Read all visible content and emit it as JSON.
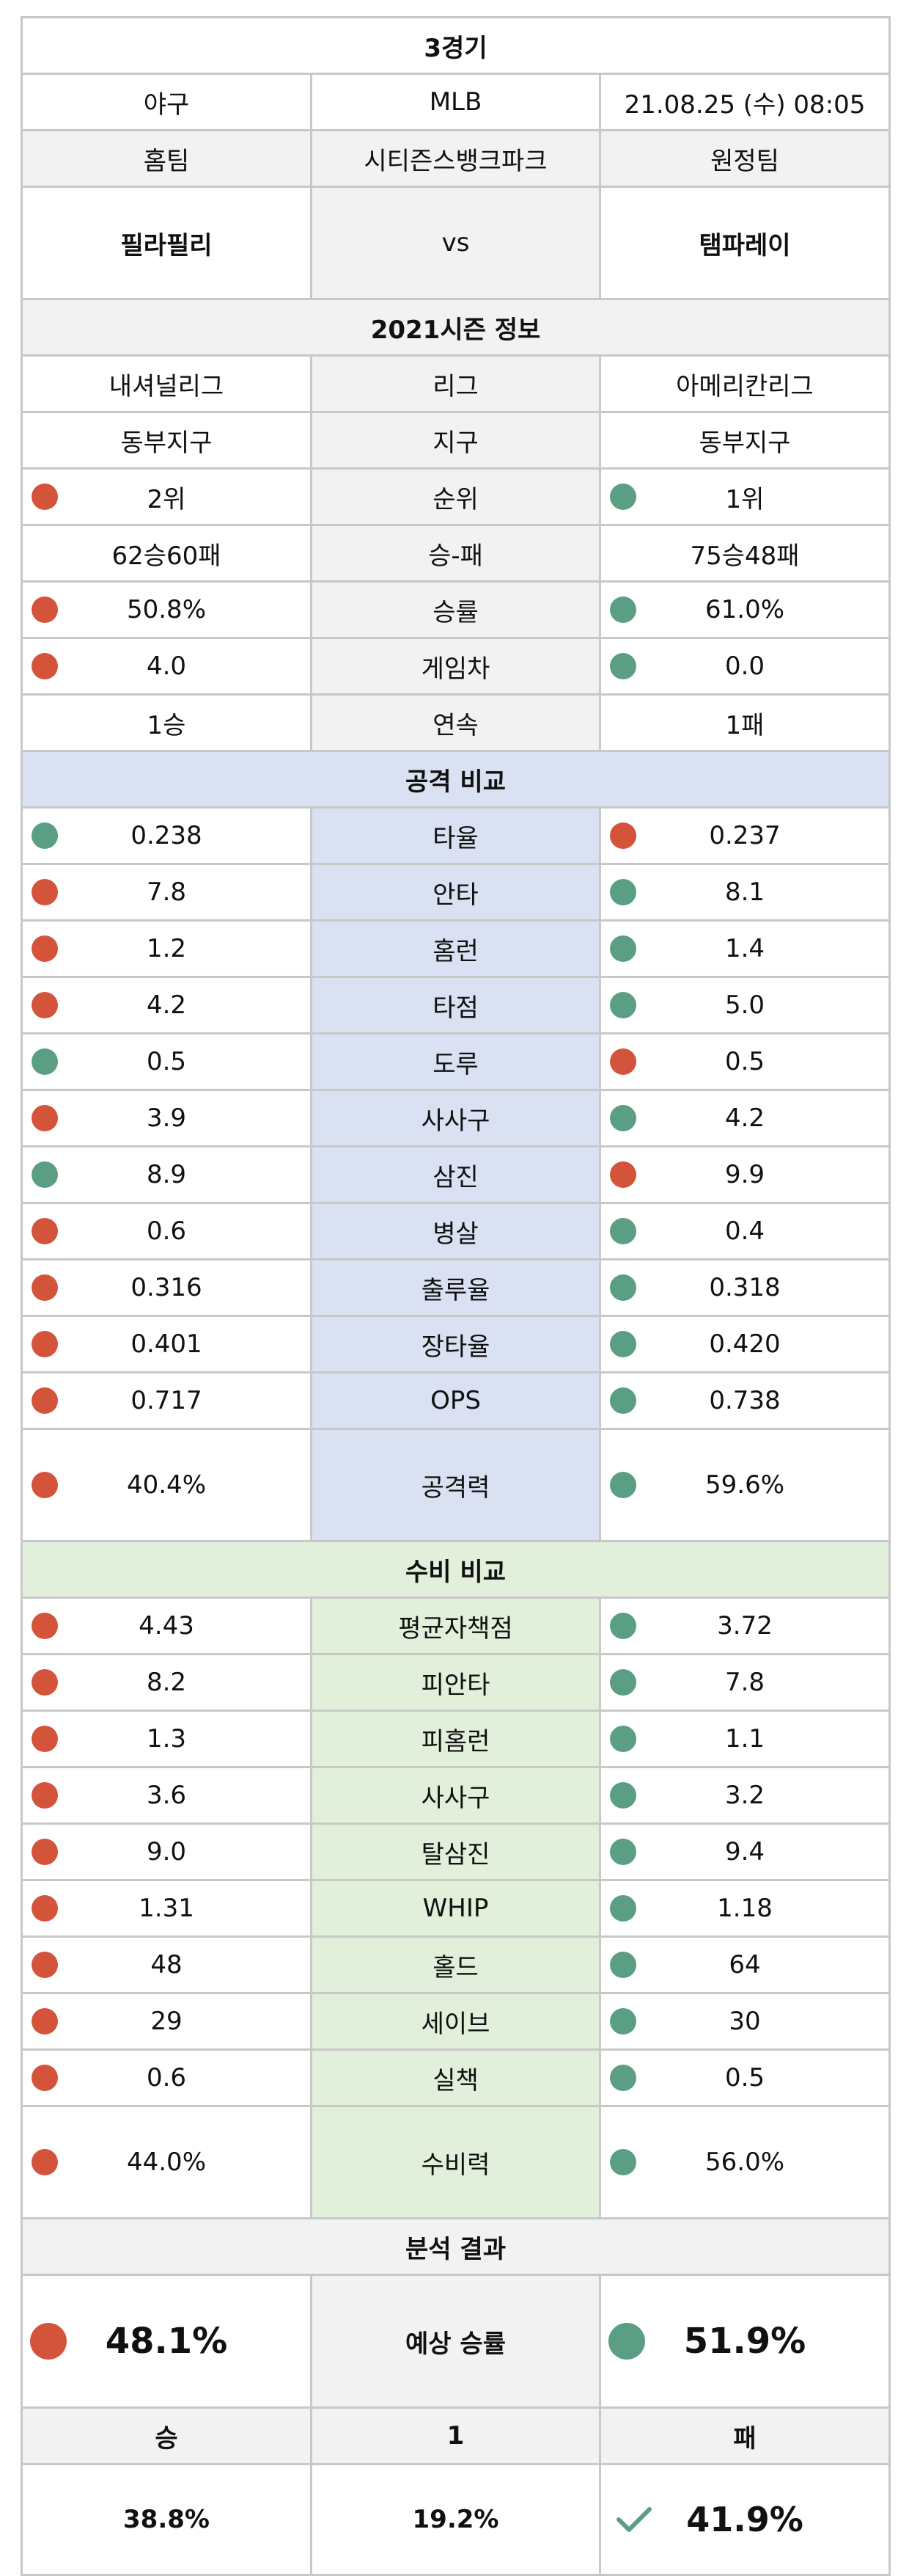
{
  "title": "3경기",
  "info": {
    "sport": "야구",
    "league": "MLB",
    "datetime": "21.08.25 (수) 08:05"
  },
  "venue_row": {
    "home_label": "홈팀",
    "stadium": "시티즌스뱅크파크",
    "away_label": "원정팀"
  },
  "teams": {
    "home": "필라필리",
    "vs": "vs",
    "away": "탬파레이"
  },
  "season_header": "2021시즌 정보",
  "season_rows": [
    {
      "label": "리그",
      "home": "내셔널리그",
      "away": "아메리칸리그",
      "home_dot": "",
      "away_dot": ""
    },
    {
      "label": "지구",
      "home": "동부지구",
      "away": "동부지구",
      "home_dot": "",
      "away_dot": ""
    },
    {
      "label": "순위",
      "home": "2위",
      "away": "1위",
      "home_dot": "red",
      "away_dot": "teal"
    },
    {
      "label": "승-패",
      "home": "62승60패",
      "away": "75승48패",
      "home_dot": "",
      "away_dot": ""
    },
    {
      "label": "승률",
      "home": "50.8%",
      "away": "61.0%",
      "home_dot": "red",
      "away_dot": "teal"
    },
    {
      "label": "게임차",
      "home": "4.0",
      "away": "0.0",
      "home_dot": "red",
      "away_dot": "teal"
    },
    {
      "label": "연속",
      "home": "1승",
      "away": "1패",
      "home_dot": "",
      "away_dot": ""
    }
  ],
  "attack_header": "공격 비교",
  "attack_rows": [
    {
      "label": "타율",
      "home": "0.238",
      "away": "0.237",
      "home_dot": "teal",
      "away_dot": "red"
    },
    {
      "label": "안타",
      "home": "7.8",
      "away": "8.1",
      "home_dot": "red",
      "away_dot": "teal"
    },
    {
      "label": "홈런",
      "home": "1.2",
      "away": "1.4",
      "home_dot": "red",
      "away_dot": "teal"
    },
    {
      "label": "타점",
      "home": "4.2",
      "away": "5.0",
      "home_dot": "red",
      "away_dot": "teal"
    },
    {
      "label": "도루",
      "home": "0.5",
      "away": "0.5",
      "home_dot": "teal",
      "away_dot": "red"
    },
    {
      "label": "사사구",
      "home": "3.9",
      "away": "4.2",
      "home_dot": "red",
      "away_dot": "teal"
    },
    {
      "label": "삼진",
      "home": "8.9",
      "away": "9.9",
      "home_dot": "teal",
      "away_dot": "red"
    },
    {
      "label": "병살",
      "home": "0.6",
      "away": "0.4",
      "home_dot": "red",
      "away_dot": "teal"
    },
    {
      "label": "출루율",
      "home": "0.316",
      "away": "0.318",
      "home_dot": "red",
      "away_dot": "teal"
    },
    {
      "label": "장타율",
      "home": "0.401",
      "away": "0.420",
      "home_dot": "red",
      "away_dot": "teal"
    },
    {
      "label": "OPS",
      "home": "0.717",
      "away": "0.738",
      "home_dot": "red",
      "away_dot": "teal"
    },
    {
      "label": "공격력",
      "home": "40.4%",
      "away": "59.6%",
      "home_dot": "red",
      "away_dot": "teal",
      "tall": true
    }
  ],
  "defense_header": "수비 비교",
  "defense_rows": [
    {
      "label": "평균자책점",
      "home": "4.43",
      "away": "3.72",
      "home_dot": "red",
      "away_dot": "teal"
    },
    {
      "label": "피안타",
      "home": "8.2",
      "away": "7.8",
      "home_dot": "red",
      "away_dot": "teal"
    },
    {
      "label": "피홈런",
      "home": "1.3",
      "away": "1.1",
      "home_dot": "red",
      "away_dot": "teal"
    },
    {
      "label": "사사구",
      "home": "3.6",
      "away": "3.2",
      "home_dot": "red",
      "away_dot": "teal"
    },
    {
      "label": "탈삼진",
      "home": "9.0",
      "away": "9.4",
      "home_dot": "red",
      "away_dot": "teal"
    },
    {
      "label": "WHIP",
      "home": "1.31",
      "away": "1.18",
      "home_dot": "red",
      "away_dot": "teal"
    },
    {
      "label": "홀드",
      "home": "48",
      "away": "64",
      "home_dot": "red",
      "away_dot": "teal"
    },
    {
      "label": "세이브",
      "home": "29",
      "away": "30",
      "home_dot": "red",
      "away_dot": "teal"
    },
    {
      "label": "실책",
      "home": "0.6",
      "away": "0.5",
      "home_dot": "red",
      "away_dot": "teal"
    },
    {
      "label": "수비력",
      "home": "44.0%",
      "away": "56.0%",
      "home_dot": "red",
      "away_dot": "teal",
      "tall": true
    }
  ],
  "analysis_header": "분석 결과",
  "prediction": {
    "label": "예상 승률",
    "home": "48.1%",
    "away": "51.9%",
    "home_dot": "red",
    "away_dot": "teal"
  },
  "wdl": {
    "win": "승",
    "draw": "1",
    "lose": "패"
  },
  "final": {
    "win": "38.8%",
    "draw": "19.2%",
    "lose": "41.9%",
    "pick_icon": "check-icon"
  },
  "colors": {
    "red": "#d4533b",
    "teal": "#5a9e84",
    "gray": "#f2f2f2",
    "blue": "#d9e1f2",
    "green": "#e2efda",
    "check": "#5a9e84"
  }
}
